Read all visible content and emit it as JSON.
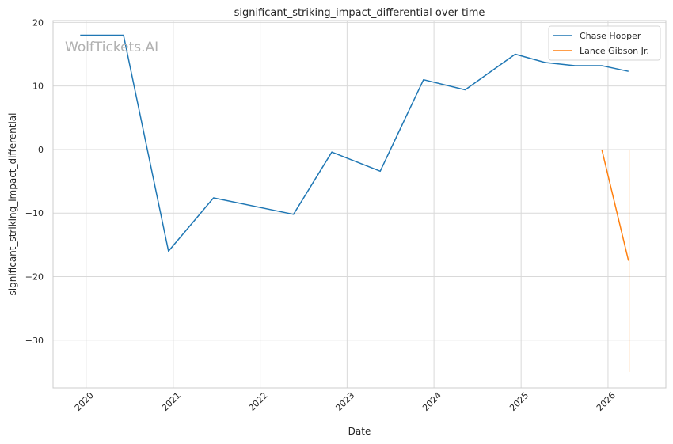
{
  "watermark": "WolfTickets.AI",
  "chart_data": {
    "type": "line",
    "title": "significant_striking_impact_differential over time",
    "xlabel": "Date",
    "ylabel": "significant_striking_impact_differential",
    "xlim": [
      "2019-08-15",
      "2026-09-01"
    ],
    "ylim": [
      -37.5,
      20.3
    ],
    "x_ticks": [
      "2020",
      "2021",
      "2022",
      "2023",
      "2024",
      "2025",
      "2026"
    ],
    "x_tick_dates": [
      "2020-01-01",
      "2021-01-01",
      "2022-01-01",
      "2023-01-01",
      "2024-01-01",
      "2025-01-01",
      "2026-01-01"
    ],
    "y_ticks": [
      20,
      10,
      0,
      -10,
      -20,
      -30
    ],
    "y_tick_labels": [
      "20",
      "10",
      "0",
      "−10",
      "−20",
      "−30"
    ],
    "grid": true,
    "legend_position": "top-right",
    "series": [
      {
        "name": "Chase Hooper",
        "color": "#1f77b4",
        "x": [
          "2019-12-07",
          "2020-06-06",
          "2020-12-12",
          "2021-06-19",
          "2022-05-21",
          "2022-10-29",
          "2023-05-20",
          "2023-11-18",
          "2024-05-11",
          "2024-12-07",
          "2025-04-12",
          "2025-08-16",
          "2025-12-06",
          "2026-03-28"
        ],
        "y": [
          18.0,
          18.0,
          -16.0,
          -7.6,
          -10.2,
          -0.4,
          -3.4,
          11.0,
          9.4,
          15.0,
          13.7,
          13.2,
          13.2,
          12.3
        ]
      },
      {
        "name": "Lance Gibson Jr.",
        "color": "#ff7f0e",
        "x": [
          "2025-12-06",
          "2026-03-28"
        ],
        "y": [
          0.0,
          -17.5
        ],
        "band": {
          "x": "2026-04-01",
          "lower": -35.0,
          "upper": 0.0
        }
      }
    ]
  }
}
